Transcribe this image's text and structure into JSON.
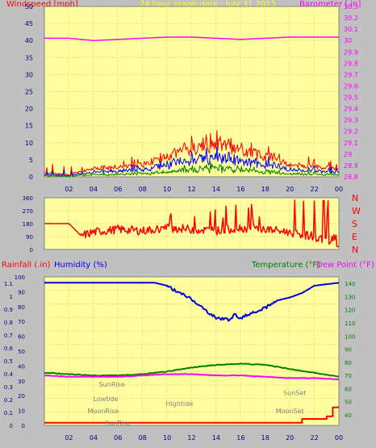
{
  "header": {
    "left_title": "Windspeed [mph]",
    "center_title": "24 hour graph date : July 31 2015",
    "right_title": "Barometer [.in]"
  },
  "colors": {
    "background": "#c0c0c0",
    "plot_bg": "#ffffa0",
    "grid": "#d8c868",
    "wind_gust": "#ff0000",
    "wind_avg": "#0000ff",
    "wind_min": "#008000",
    "barometer": "#ff00ff",
    "direction": "#ff0000",
    "humidity": "#0000dd",
    "temperature": "#008000",
    "dewpoint": "#ff00ff",
    "rain": "#ff0000",
    "labels_red": "#ff0000",
    "labels_magenta": "#ff00ff",
    "labels_blue": "#0000ff",
    "labels_green": "#008000",
    "annotation": "#808080"
  },
  "time_axis": [
    "02",
    "04",
    "06",
    "08",
    "10",
    "12",
    "14",
    "16",
    "18",
    "20",
    "22",
    "00"
  ],
  "direction_labels": [
    "N",
    "W",
    "S",
    "E",
    "N"
  ],
  "bottom_labels": {
    "rainfall": "Rainfall (.in)",
    "humidity": "Humidity (%)",
    "temperature": "Temperature (°F)",
    "dewpoint": "Dew Point (°F)"
  },
  "chart_data": [
    {
      "type": "line",
      "series": [
        {
          "name": "Windspeed [mph]",
          "x_hours": [
            0,
            2,
            4,
            6,
            8,
            10,
            12,
            14,
            16,
            18,
            20,
            22,
            24
          ],
          "values": [
            1,
            0.5,
            2,
            2.5,
            3,
            5,
            7,
            8,
            7,
            5,
            3,
            2.5,
            2
          ]
        },
        {
          "name": "Barometer [.in]",
          "x_hours": [
            0,
            2,
            4,
            6,
            8,
            10,
            12,
            14,
            16,
            18,
            20,
            22,
            24
          ],
          "values": [
            30.02,
            30.02,
            30.0,
            30.01,
            30.02,
            30.03,
            30.03,
            30.02,
            30.01,
            30.02,
            30.03,
            30.03,
            30.03
          ]
        }
      ],
      "y_ticks": [
        "0",
        "5",
        "10",
        "15",
        "20",
        "25",
        "30",
        "35",
        "40",
        "45",
        "50"
      ],
      "y2_ticks": [
        "28.8",
        "28.9",
        "29",
        "29.1",
        "29.2",
        "29.3",
        "29.4",
        "29.5",
        "29.6",
        "29.7",
        "29.8",
        "29.9",
        "30",
        "30.1",
        "30.2",
        "30.3"
      ],
      "ylim": [
        0,
        50
      ],
      "y2lim": [
        28.8,
        30.3
      ],
      "grid": true
    },
    {
      "type": "line",
      "series": [
        {
          "name": "Wind direction",
          "x_hours": [
            0,
            2,
            3,
            4,
            6,
            8,
            10,
            12,
            14,
            16,
            18,
            20,
            22,
            23,
            24
          ],
          "values": [
            180,
            180,
            95,
            120,
            140,
            130,
            150,
            140,
            130,
            150,
            140,
            120,
            90,
            60,
            90
          ]
        }
      ],
      "y_ticks": [
        "0",
        "90",
        "180",
        "270",
        "360"
      ],
      "ylim": [
        0,
        360
      ],
      "grid": true
    },
    {
      "type": "line",
      "series": [
        {
          "name": "Humidity (%)",
          "x_hours": [
            0,
            2,
            4,
            6,
            8,
            9,
            10,
            11,
            12,
            13,
            14,
            15,
            15.5,
            16,
            17,
            18,
            19,
            20,
            21,
            22,
            24
          ],
          "values": [
            97,
            97,
            97,
            97,
            97,
            97,
            95,
            90,
            86,
            79,
            73,
            72,
            75,
            73,
            77,
            80,
            85,
            87,
            90,
            95,
            97
          ]
        },
        {
          "name": "Temperature (°F)",
          "x_hours": [
            0,
            2,
            4,
            6,
            8,
            10,
            12,
            14,
            16,
            18,
            20,
            22,
            24
          ],
          "values": [
            72,
            71,
            70,
            70,
            71,
            73,
            76,
            78,
            79,
            78,
            75,
            72,
            69
          ]
        },
        {
          "name": "Dew Point (°F)",
          "x_hours": [
            0,
            2,
            4,
            6,
            8,
            10,
            12,
            14,
            16,
            18,
            20,
            22,
            24
          ],
          "values": [
            70,
            69,
            69,
            69,
            70,
            71,
            71,
            70,
            70,
            69,
            68,
            68,
            67
          ]
        },
        {
          "name": "Rainfall (.in)",
          "x_hours": [
            0,
            20.5,
            21,
            22,
            23,
            23.5,
            24
          ],
          "values": [
            0.02,
            0.02,
            0.05,
            0.05,
            0.07,
            0.14,
            0.14
          ]
        }
      ],
      "y_ticks": [
        "0",
        "10",
        "20",
        "30",
        "40",
        "50",
        "60",
        "70",
        "80",
        "90",
        "100"
      ],
      "rain_ticks": [
        "0",
        "0.1",
        "0.2",
        "0.3",
        "0.4",
        "0.5",
        "0.6",
        "0.7",
        "0.8",
        "0.9",
        "1",
        "1.1"
      ],
      "temp_ticks": [
        "40",
        "50",
        "60",
        "70",
        "80",
        "90",
        "100",
        "110",
        "120",
        "130",
        "140"
      ],
      "ylim": [
        0,
        100
      ],
      "rain_ylim": [
        0,
        1.15
      ],
      "temp_ylim": [
        32,
        145
      ],
      "annotations": [
        {
          "label": "SunRise",
          "hour": 5.5,
          "level": 0.24
        },
        {
          "label": "Lowtide",
          "hour": 5.0,
          "level": 0.12
        },
        {
          "label": "MoonRise",
          "hour": 4.8,
          "level": 0.02
        },
        {
          "label": "Hightide",
          "hour": 11.0,
          "level": 0.08
        },
        {
          "label": "SunSet",
          "hour": 20.4,
          "level": 0.17
        },
        {
          "label": "MoonSet",
          "hour": 20.0,
          "level": 0.02
        },
        {
          "label": "SunRise",
          "hour": 6.0,
          "level": -0.08
        }
      ],
      "grid": true
    }
  ]
}
